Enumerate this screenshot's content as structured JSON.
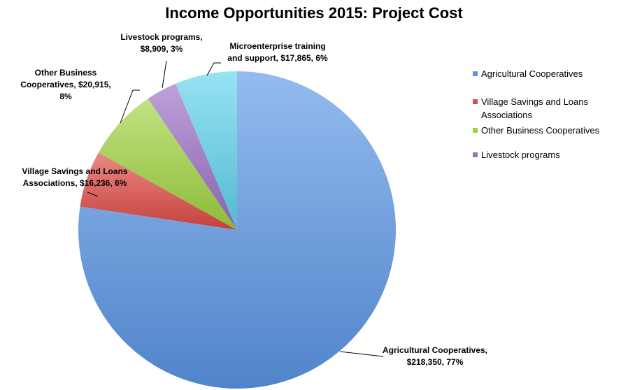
{
  "chart_data": {
    "type": "pie",
    "title": "Income Opportunities 2015: Project Cost",
    "slices": [
      {
        "name": "Agricultural Cooperatives",
        "value": 218350,
        "percent": 77,
        "color": "#5b96e6",
        "label_lines": [
          "Agricultural Cooperatives,",
          "$218,350, 77%"
        ]
      },
      {
        "name": "Village Savings and Loans Associations",
        "value": 16236,
        "percent": 6,
        "color": "#e04a44",
        "label_lines": [
          "Village Savings and Loans",
          "Associations, $16,236, 6%"
        ]
      },
      {
        "name": "Other Business Cooperatives",
        "value": 20915,
        "percent": 8,
        "color": "#9fd43e",
        "label_lines": [
          "Other Business",
          "Cooperatives, $20,915,",
          "8%"
        ]
      },
      {
        "name": "Livestock programs",
        "value": 8909,
        "percent": 3,
        "color": "#9b6fc6",
        "label_lines": [
          "Livestock programs,",
          "$8,909, 3%"
        ]
      },
      {
        "name": "Microenterprise training and support",
        "value": 17865,
        "percent": 6,
        "color": "#5fd3ec",
        "label_lines": [
          "Microenterprise training",
          "and support, $17,865, 6%"
        ]
      }
    ],
    "legend": {
      "placement": "right",
      "entries": [
        {
          "label": "Agricultural Cooperatives",
          "color": "#5b96e6"
        },
        {
          "label": "Village Savings and Loans Associations",
          "color": "#e04a44"
        },
        {
          "label": "Other Business Cooperatives",
          "color": "#9fd43e"
        },
        {
          "label": "Livestock programs",
          "color": "#9b6fc6"
        }
      ]
    }
  }
}
